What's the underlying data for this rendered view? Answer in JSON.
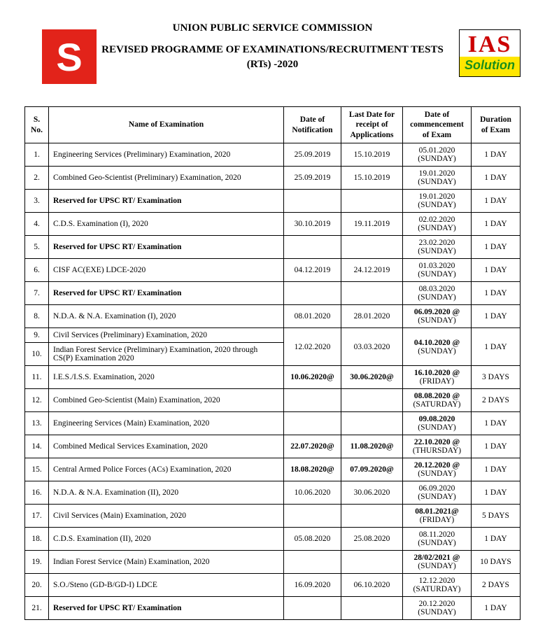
{
  "header": {
    "title_main": "UNION PUBLIC SERVICE COMMISSION",
    "title_sub_line1": "REVISED PROGRAMME OF EXAMINATIONS/RECRUITMENT TESTS",
    "title_sub_line2": "(RTs) -2020"
  },
  "logo_left": {
    "text": "S",
    "bg": "#e2231a",
    "fg": "#ffffff"
  },
  "logo_right": {
    "top": "IAS",
    "bottom": "Solution"
  },
  "columns": {
    "sno": "S. No.",
    "name": "Name of Examination",
    "notif": "Date of Notification",
    "last": "Last Date for receipt of Applications",
    "comm": "Date of commencement of Exam",
    "dur": "Duration of Exam"
  },
  "rows": [
    {
      "sno": "1.",
      "name": "Engineering Services (Preliminary) Examination, 2020",
      "name_bold": false,
      "notif": "25.09.2019",
      "last": "15.10.2019",
      "date": "05.01.2020",
      "date_bold": false,
      "day": "(SUNDAY)",
      "dur": "1 DAY"
    },
    {
      "sno": "2.",
      "name": "Combined Geo-Scientist (Preliminary) Examination, 2020",
      "name_bold": false,
      "notif": "25.09.2019",
      "last": "15.10.2019",
      "date": "19.01.2020",
      "date_bold": false,
      "day": "(SUNDAY)",
      "dur": "1 DAY"
    },
    {
      "sno": "3.",
      "name": "Reserved for UPSC RT/ Examination",
      "name_bold": true,
      "notif": "",
      "last": "",
      "date": "19.01.2020",
      "date_bold": false,
      "day": "(SUNDAY)",
      "dur": "1 DAY"
    },
    {
      "sno": "4.",
      "name": "C.D.S. Examination (I), 2020",
      "name_bold": false,
      "notif": "30.10.2019",
      "last": "19.11.2019",
      "date": "02.02.2020",
      "date_bold": false,
      "day": "(SUNDAY)",
      "dur": "1 DAY"
    },
    {
      "sno": "5.",
      "name": "Reserved for UPSC RT/ Examination",
      "name_bold": true,
      "notif": "",
      "last": "",
      "date": "23.02.2020",
      "date_bold": false,
      "day": "(SUNDAY)",
      "dur": "1 DAY"
    },
    {
      "sno": "6.",
      "name": "CISF AC(EXE) LDCE-2020",
      "name_bold": false,
      "notif": "04.12.2019",
      "last": "24.12.2019",
      "date": "01.03.2020",
      "date_bold": false,
      "day": "(SUNDAY)",
      "dur": "1 DAY"
    },
    {
      "sno": "7.",
      "name": "Reserved for UPSC RT/ Examination",
      "name_bold": true,
      "notif": "",
      "last": "",
      "date": "08.03.2020",
      "date_bold": false,
      "day": "(SUNDAY)",
      "dur": "1 DAY"
    },
    {
      "sno": "8.",
      "name": "N.D.A. & N.A. Examination (I), 2020",
      "name_bold": false,
      "notif": "08.01.2020",
      "last": "28.01.2020",
      "date": "06.09.2020 @",
      "date_bold": true,
      "day": "(SUNDAY)",
      "dur": "1 DAY"
    },
    {
      "sno": "11.",
      "name": "I.E.S./I.S.S. Examination, 2020",
      "name_bold": false,
      "notif": "10.06.2020@",
      "notif_bold": true,
      "last": "30.06.2020@",
      "last_bold": true,
      "date": "16.10.2020 @",
      "date_bold": true,
      "day": "(FRIDAY)",
      "dur": "3 DAYS"
    },
    {
      "sno": "12.",
      "name": "Combined Geo-Scientist (Main) Examination, 2020",
      "name_bold": false,
      "notif": "",
      "last": "",
      "date": "08.08.2020 @",
      "date_bold": true,
      "day": "(SATURDAY)",
      "dur": "2 DAYS"
    },
    {
      "sno": "13.",
      "name": "Engineering Services (Main) Examination, 2020",
      "name_bold": false,
      "notif": "",
      "last": "",
      "date": "09.08.2020",
      "date_bold": true,
      "day": "(SUNDAY)",
      "dur": "1 DAY"
    },
    {
      "sno": "14.",
      "name": "Combined Medical Services Examination, 2020",
      "name_bold": false,
      "notif": "22.07.2020@",
      "notif_bold": true,
      "last": "11.08.2020@",
      "last_bold": true,
      "date": "22.10.2020 @",
      "date_bold": true,
      "day": "(THURSDAY)",
      "dur": "1 DAY"
    },
    {
      "sno": "15.",
      "name": "Central Armed Police Forces (ACs) Examination, 2020",
      "name_bold": false,
      "notif": "18.08.2020@",
      "notif_bold": true,
      "last": "07.09.2020@",
      "last_bold": true,
      "date": "20.12.2020 @",
      "date_bold": true,
      "day": "(SUNDAY)",
      "dur": "1 DAY"
    },
    {
      "sno": "16.",
      "name": "N.D.A. & N.A. Examination (II), 2020",
      "name_bold": false,
      "notif": "10.06.2020",
      "last": "30.06.2020",
      "date": "06.09.2020",
      "date_bold": false,
      "day": "(SUNDAY)",
      "dur": "1 DAY"
    },
    {
      "sno": "17.",
      "name": "Civil Services (Main) Examination, 2020",
      "name_bold": false,
      "notif": "",
      "last": "",
      "date": "08.01.2021@",
      "date_bold": true,
      "day": "(FRIDAY)",
      "dur": "5 DAYS"
    },
    {
      "sno": "18.",
      "name": "C.D.S. Examination (II), 2020",
      "name_bold": false,
      "notif": "05.08.2020",
      "last": "25.08.2020",
      "date": "08.11.2020",
      "date_bold": false,
      "day": "(SUNDAY)",
      "dur": "1 DAY"
    },
    {
      "sno": "19.",
      "name": "Indian Forest Service (Main) Examination, 2020",
      "name_bold": false,
      "notif": "",
      "last": "",
      "date": "28/02/2021 @",
      "date_bold": true,
      "day": "(SUNDAY)",
      "dur": "10 DAYS"
    },
    {
      "sno": "20.",
      "name": "S.O./Steno (GD-B/GD-I) LDCE",
      "name_bold": false,
      "notif": "16.09.2020",
      "last": "06.10.2020",
      "date": "12.12.2020",
      "date_bold": false,
      "day": "(SATURDAY)",
      "dur": "2 DAYS"
    },
    {
      "sno": "21.",
      "name": "Reserved for UPSC RT/ Examination",
      "name_bold": true,
      "notif": "",
      "last": "",
      "date": "20.12.2020",
      "date_bold": false,
      "day": "(SUNDAY)",
      "dur": "1 DAY"
    }
  ],
  "merged_block": {
    "rows": [
      {
        "sno": "9.",
        "name": "Civil Services (Preliminary) Examination, 2020"
      },
      {
        "sno": "10.",
        "name": "Indian Forest Service (Preliminary) Examination, 2020 through CS(P) Examination 2020"
      }
    ],
    "notif": "12.02.2020",
    "last": "03.03.2020",
    "date": "04.10.2020 @",
    "date_bold": true,
    "day": "(SUNDAY)",
    "dur": "1 DAY"
  }
}
